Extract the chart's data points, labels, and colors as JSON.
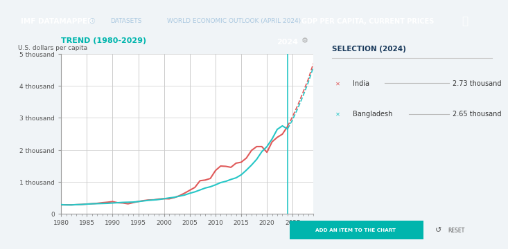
{
  "bg_color": "#f0f4f7",
  "header_bg": "#1a3a5c",
  "header_teal": "#00b5ad",
  "title": "TREND (1980-2029)",
  "ylabel": "U.S. dollars per capita",
  "selection_title": "SELECTION (2024)",
  "india_label": "India",
  "india_value": "2.73 thousand",
  "india_color": "#e05a5a",
  "bangladesh_label": "Bangladesh",
  "bangladesh_value": "2.65 thousand",
  "bangladesh_color": "#26c6c6",
  "year_marker": 2024,
  "xlim": [
    1980,
    2029
  ],
  "ylim": [
    0,
    5000
  ],
  "yticks": [
    0,
    1000,
    2000,
    3000,
    4000,
    5000
  ],
  "ytick_labels": [
    "0",
    "1 thousand",
    "2 thousand",
    "3 thousand",
    "4 thousand",
    "5 thousand"
  ],
  "xticks": [
    1980,
    1985,
    1990,
    1995,
    2000,
    2005,
    2010,
    2015,
    2020,
    2025
  ],
  "india_years": [
    1980,
    1981,
    1982,
    1983,
    1984,
    1985,
    1986,
    1987,
    1988,
    1989,
    1990,
    1991,
    1992,
    1993,
    1994,
    1995,
    1996,
    1997,
    1998,
    1999,
    2000,
    2001,
    2002,
    2003,
    2004,
    2005,
    2006,
    2007,
    2008,
    2009,
    2010,
    2011,
    2012,
    2013,
    2014,
    2015,
    2016,
    2017,
    2018,
    2019,
    2020,
    2021,
    2022,
    2023,
    2024
  ],
  "india_gdp": [
    270,
    275,
    272,
    278,
    285,
    298,
    308,
    320,
    340,
    355,
    374,
    339,
    330,
    305,
    342,
    378,
    405,
    425,
    430,
    455,
    465,
    461,
    500,
    560,
    640,
    730,
    820,
    1030,
    1050,
    1100,
    1350,
    1490,
    1480,
    1450,
    1580,
    1610,
    1740,
    1980,
    2100,
    2100,
    1920,
    2250,
    2390,
    2490,
    2730
  ],
  "bangladesh_years": [
    1980,
    1981,
    1982,
    1983,
    1984,
    1985,
    1986,
    1987,
    1988,
    1989,
    1990,
    1991,
    1992,
    1993,
    1994,
    1995,
    1996,
    1997,
    1998,
    1999,
    2000,
    2001,
    2002,
    2003,
    2004,
    2005,
    2006,
    2007,
    2008,
    2009,
    2010,
    2011,
    2012,
    2013,
    2014,
    2015,
    2016,
    2017,
    2018,
    2019,
    2020,
    2021,
    2022,
    2023,
    2024
  ],
  "bangladesh_gdp": [
    280,
    270,
    270,
    280,
    285,
    295,
    305,
    310,
    315,
    320,
    330,
    340,
    350,
    355,
    360,
    375,
    395,
    415,
    425,
    440,
    465,
    490,
    510,
    545,
    580,
    635,
    680,
    740,
    800,
    840,
    900,
    970,
    1010,
    1070,
    1120,
    1215,
    1360,
    1520,
    1700,
    1940,
    2100,
    2340,
    2640,
    2750,
    2650
  ],
  "india_forecast_years": [
    2024,
    2025,
    2026,
    2027,
    2028,
    2029
  ],
  "india_forecast_gdp": [
    2730,
    3050,
    3400,
    3800,
    4200,
    4700
  ],
  "bangladesh_forecast_years": [
    2024,
    2025,
    2026,
    2027,
    2028,
    2029
  ],
  "bangladesh_forecast_gdp": [
    2650,
    2950,
    3300,
    3680,
    4100,
    4580
  ],
  "grid_color": "#cccccc",
  "axis_color": "#999999",
  "vertical_line_color": "#26c6c6",
  "plot_bg": "#ffffff",
  "header_title1": "IMF DATAMAPPER",
  "header_title2": "DATASETS",
  "header_title3": "WORLD ECONOMIC OUTLOOK (APRIL 2024)",
  "header_title4": "GDP PER CAPITA, CURRENT PRICES",
  "add_button_text": "ADD AN ITEM TO THE CHART",
  "reset_text": "RESET"
}
